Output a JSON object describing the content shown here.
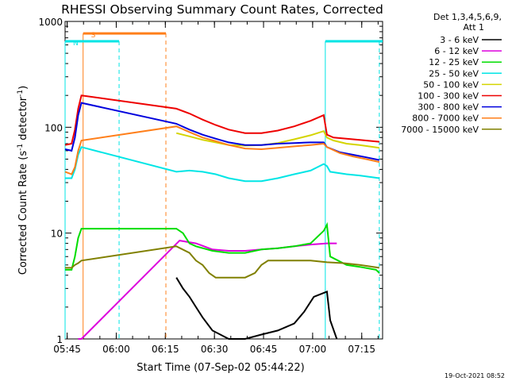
{
  "colors": {
    "3-6": "#000000",
    "6-12": "#dd00dd",
    "12-25": "#00dd00",
    "25-50": "#00e5e5",
    "50-100": "#d4d400",
    "100-300": "#ee0000",
    "300-800": "#0000dd",
    "800-7000": "#ff7f1a",
    "7000-15000": "#808000"
  },
  "chart_data": {
    "type": "line",
    "title": "RHESSI Observing Summary Count Rates, Corrected",
    "xlabel": "Start Time (07-Sep-02 05:44:22)",
    "ylabel_prefix": "Corrected Count Rate (s",
    "ylabel_sup1": "-1",
    "ylabel_mid": " detector",
    "ylabel_sup2": "-1",
    "ylabel_suffix": ")",
    "y_scale": "log",
    "ylim": [
      1,
      1000
    ],
    "y_ticks": [
      {
        "v": 1,
        "label": "1"
      },
      {
        "v": 10,
        "label": "10"
      },
      {
        "v": 100,
        "label": "100"
      },
      {
        "v": 1000,
        "label": "1000"
      }
    ],
    "x_unit": "minutes after 05:44:22",
    "xlim": [
      0,
      97
    ],
    "x_ticks": [
      {
        "v": 0.63,
        "label": "05:45"
      },
      {
        "v": 15.63,
        "label": "06:00"
      },
      {
        "v": 30.63,
        "label": "06:15"
      },
      {
        "v": 45.63,
        "label": "06:30"
      },
      {
        "v": 60.63,
        "label": "06:45"
      },
      {
        "v": 75.63,
        "label": "07:00"
      },
      {
        "v": 90.63,
        "label": "07:15"
      }
    ],
    "legend_header": [
      "Det 1,3,4,5,6,9,",
      "Att 1"
    ],
    "legend_position": "right",
    "timestamp": "19-Oct-2021 08:52",
    "markers": [
      {
        "label": "S",
        "color": "#ff7f1a",
        "bar": [
          5.5,
          30.8
        ],
        "y": 770,
        "vlines": [
          5.5,
          30.8
        ]
      },
      {
        "label": "N",
        "color": "#00e5e5",
        "bar": [
          0,
          16.5
        ],
        "y": 650,
        "vlines": [
          0,
          16.5
        ],
        "bar2": [
          79.5,
          97
        ],
        "vlines2": [
          79.5,
          96
        ]
      }
    ],
    "series": [
      {
        "key": "3-6",
        "name": "3 - 6 keV",
        "points": [
          [
            34,
            3.8
          ],
          [
            36,
            3.0
          ],
          [
            38,
            2.5
          ],
          [
            40,
            2.0
          ],
          [
            42,
            1.6
          ],
          [
            45,
            1.2
          ],
          [
            50,
            1.0
          ],
          [
            55,
            1.0
          ],
          [
            60,
            1.1
          ],
          [
            65,
            1.2
          ],
          [
            70,
            1.4
          ],
          [
            73,
            1.8
          ],
          [
            76,
            2.5
          ],
          [
            80,
            2.8
          ],
          [
            81,
            1.5
          ],
          [
            83,
            1.0
          ]
        ]
      },
      {
        "key": "6-12",
        "name": "6 - 12 keV",
        "points": [
          [
            4,
            1.0
          ],
          [
            5,
            1.0
          ],
          [
            35,
            8.5
          ],
          [
            40,
            8.0
          ],
          [
            45,
            7.0
          ],
          [
            50,
            6.8
          ],
          [
            55,
            6.8
          ],
          [
            60,
            7.0
          ],
          [
            65,
            7.2
          ],
          [
            70,
            7.5
          ],
          [
            75,
            7.8
          ],
          [
            80,
            8.0
          ],
          [
            83,
            8.0
          ]
        ]
      },
      {
        "key": "12-25",
        "name": "12 - 25 keV",
        "points": [
          [
            0,
            4.5
          ],
          [
            2,
            4.5
          ],
          [
            3,
            6
          ],
          [
            4,
            9
          ],
          [
            5,
            11
          ],
          [
            34,
            11
          ],
          [
            36,
            10
          ],
          [
            38,
            8
          ],
          [
            40,
            7.5
          ],
          [
            45,
            6.8
          ],
          [
            50,
            6.5
          ],
          [
            55,
            6.5
          ],
          [
            60,
            7.0
          ],
          [
            65,
            7.2
          ],
          [
            70,
            7.5
          ],
          [
            75,
            8.0
          ],
          [
            79,
            10.5
          ],
          [
            80,
            12
          ],
          [
            81,
            6
          ],
          [
            86,
            5.0
          ],
          [
            90,
            4.8
          ],
          [
            95,
            4.5
          ],
          [
            96,
            4.2
          ]
        ]
      },
      {
        "key": "25-50",
        "name": "25 - 50 keV",
        "points": [
          [
            0,
            33
          ],
          [
            2,
            33
          ],
          [
            3,
            40
          ],
          [
            4,
            55
          ],
          [
            5,
            65
          ],
          [
            34,
            38
          ],
          [
            38,
            39
          ],
          [
            42,
            38
          ],
          [
            46,
            36
          ],
          [
            50,
            33
          ],
          [
            55,
            31
          ],
          [
            60,
            31
          ],
          [
            65,
            33
          ],
          [
            70,
            36
          ],
          [
            75,
            39
          ],
          [
            79,
            45
          ],
          [
            80,
            43
          ],
          [
            81,
            38
          ],
          [
            86,
            36
          ],
          [
            90,
            35
          ],
          [
            96,
            33
          ]
        ]
      },
      {
        "key": "50-100",
        "name": "50 - 100 keV",
        "points": [
          [
            34,
            88
          ],
          [
            38,
            82
          ],
          [
            42,
            76
          ],
          [
            46,
            72
          ],
          [
            50,
            68
          ],
          [
            55,
            67
          ],
          [
            60,
            68
          ],
          [
            65,
            71
          ],
          [
            70,
            77
          ],
          [
            75,
            84
          ],
          [
            79,
            92
          ],
          [
            80,
            80
          ],
          [
            82,
            75
          ],
          [
            86,
            70
          ],
          [
            90,
            68
          ],
          [
            96,
            64
          ]
        ]
      },
      {
        "key": "100-300",
        "name": "100 - 300 keV",
        "points": [
          [
            0,
            68
          ],
          [
            2,
            70
          ],
          [
            3,
            95
          ],
          [
            4,
            150
          ],
          [
            5,
            200
          ],
          [
            34,
            150
          ],
          [
            38,
            135
          ],
          [
            42,
            118
          ],
          [
            46,
            105
          ],
          [
            50,
            95
          ],
          [
            55,
            88
          ],
          [
            60,
            88
          ],
          [
            65,
            93
          ],
          [
            70,
            102
          ],
          [
            75,
            115
          ],
          [
            79,
            130
          ],
          [
            80,
            85
          ],
          [
            82,
            80
          ],
          [
            86,
            78
          ],
          [
            90,
            76
          ],
          [
            96,
            73
          ]
        ]
      },
      {
        "key": "300-800",
        "name": "300 - 800 keV",
        "points": [
          [
            0,
            62
          ],
          [
            2,
            60
          ],
          [
            3,
            80
          ],
          [
            4,
            130
          ],
          [
            5,
            170
          ],
          [
            34,
            108
          ],
          [
            38,
            95
          ],
          [
            42,
            85
          ],
          [
            46,
            78
          ],
          [
            50,
            72
          ],
          [
            55,
            68
          ],
          [
            60,
            68
          ],
          [
            65,
            70
          ],
          [
            70,
            71
          ],
          [
            75,
            72
          ],
          [
            79,
            72
          ],
          [
            80,
            65
          ],
          [
            84,
            58
          ],
          [
            88,
            55
          ],
          [
            92,
            52
          ],
          [
            96,
            49
          ]
        ]
      },
      {
        "key": "800-7000",
        "name": "800 - 7000 keV",
        "points": [
          [
            0,
            38
          ],
          [
            2,
            36
          ],
          [
            3,
            42
          ],
          [
            4,
            60
          ],
          [
            5,
            75
          ],
          [
            34,
            102
          ],
          [
            38,
            90
          ],
          [
            42,
            80
          ],
          [
            46,
            74
          ],
          [
            50,
            68
          ],
          [
            55,
            63
          ],
          [
            60,
            62
          ],
          [
            65,
            64
          ],
          [
            70,
            66
          ],
          [
            75,
            68
          ],
          [
            79,
            70
          ],
          [
            80,
            65
          ],
          [
            84,
            57
          ],
          [
            88,
            53
          ],
          [
            92,
            50
          ],
          [
            96,
            47
          ]
        ]
      },
      {
        "key": "7000-15000",
        "name": "7000 - 15000 keV",
        "points": [
          [
            0,
            4.7
          ],
          [
            2,
            4.7
          ],
          [
            3,
            5.0
          ],
          [
            4,
            5.2
          ],
          [
            5,
            5.5
          ],
          [
            34,
            7.5
          ],
          [
            38,
            6.5
          ],
          [
            40,
            5.5
          ],
          [
            42,
            5.0
          ],
          [
            44,
            4.2
          ],
          [
            46,
            3.8
          ],
          [
            50,
            3.8
          ],
          [
            55,
            3.8
          ],
          [
            58,
            4.2
          ],
          [
            60,
            5.0
          ],
          [
            62,
            5.5
          ],
          [
            65,
            5.5
          ],
          [
            70,
            5.5
          ],
          [
            75,
            5.5
          ],
          [
            80,
            5.3
          ],
          [
            85,
            5.2
          ],
          [
            90,
            5.0
          ],
          [
            96,
            4.7
          ]
        ]
      }
    ]
  }
}
